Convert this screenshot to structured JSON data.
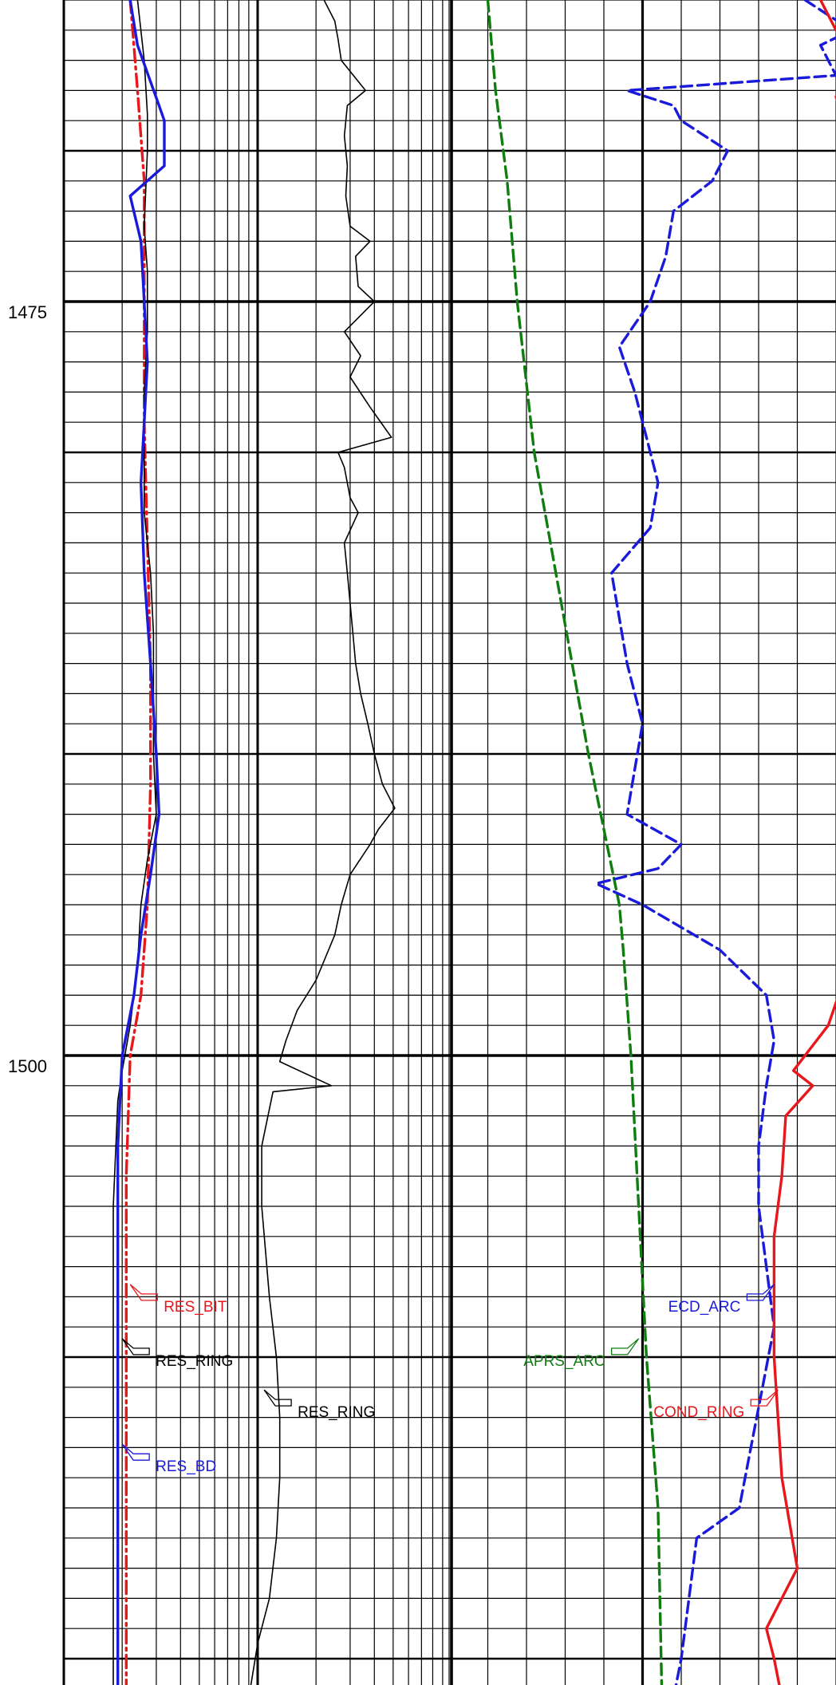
{
  "chart_data": {
    "type": "line",
    "title": "",
    "depth_axis": {
      "range": [
        1465,
        1521.3
      ],
      "tick_labels": [
        "1475",
        "1500"
      ],
      "major_step": 25,
      "gridline_step": 1
    },
    "grid": true,
    "tracks": [
      {
        "name": "track-1",
        "scale": "logarithmic",
        "series": [
          {
            "name": "RES_BIT",
            "color": "#e8171b",
            "dash": "dash-dot",
            "points": [
              [
                1465.0,
                0.22
              ],
              [
                1468.0,
                0.24
              ],
              [
                1471.0,
                0.26
              ],
              [
                1475.0,
                0.26
              ],
              [
                1479.0,
                0.26
              ],
              [
                1483.0,
                0.27
              ],
              [
                1487.0,
                0.28
              ],
              [
                1491.0,
                0.28
              ],
              [
                1495.0,
                0.27
              ],
              [
                1498.0,
                0.25
              ],
              [
                1500.0,
                0.22
              ],
              [
                1504.0,
                0.21
              ],
              [
                1508.0,
                0.21
              ],
              [
                1511.0,
                0.21
              ],
              [
                1514.0,
                0.21
              ],
              [
                1518.0,
                0.21
              ],
              [
                1521.3,
                0.21
              ]
            ]
          },
          {
            "name": "RES_RING",
            "color": "#000000",
            "dash": "solid",
            "points": [
              [
                1465.0,
                0.24
              ],
              [
                1467.0,
                0.26
              ],
              [
                1468.8,
                0.27
              ],
              [
                1470.0,
                0.27
              ],
              [
                1472.5,
                0.26
              ],
              [
                1474.0,
                0.27
              ],
              [
                1476.0,
                0.27
              ],
              [
                1478.0,
                0.26
              ],
              [
                1480.0,
                0.26
              ],
              [
                1482.0,
                0.26
              ],
              [
                1484.0,
                0.28
              ],
              [
                1486.0,
                0.29
              ],
              [
                1488.0,
                0.29
              ],
              [
                1490.0,
                0.29
              ],
              [
                1492.0,
                0.3
              ],
              [
                1493.5,
                0.27
              ],
              [
                1495.0,
                0.25
              ],
              [
                1497.0,
                0.24
              ],
              [
                1499.0,
                0.22
              ],
              [
                1500.5,
                0.2
              ],
              [
                1501.5,
                0.19
              ],
              [
                1505.0,
                0.18
              ],
              [
                1510.0,
                0.18
              ],
              [
                1515.0,
                0.18
              ],
              [
                1521.3,
                0.18
              ]
            ]
          },
          {
            "name": "RES_BD",
            "color": "#1a1adb",
            "dash": "solid",
            "points": [
              [
                1465.0,
                0.22
              ],
              [
                1466.5,
                0.24
              ],
              [
                1468.5,
                0.31
              ],
              [
                1469.0,
                0.33
              ],
              [
                1470.5,
                0.33
              ],
              [
                1471.5,
                0.22
              ],
              [
                1473.0,
                0.25
              ],
              [
                1475.0,
                0.26
              ],
              [
                1477.0,
                0.27
              ],
              [
                1479.0,
                0.26
              ],
              [
                1481.0,
                0.25
              ],
              [
                1484.0,
                0.26
              ],
              [
                1487.0,
                0.28
              ],
              [
                1490.0,
                0.3
              ],
              [
                1492.0,
                0.31
              ],
              [
                1494.0,
                0.28
              ],
              [
                1496.0,
                0.25
              ],
              [
                1498.0,
                0.23
              ],
              [
                1500.0,
                0.2
              ],
              [
                1503.0,
                0.19
              ],
              [
                1506.0,
                0.19
              ],
              [
                1510.0,
                0.19
              ],
              [
                1515.0,
                0.19
              ],
              [
                1521.3,
                0.19
              ]
            ]
          },
          {
            "name": "RES_RING",
            "color": "#000000",
            "dash": "solid",
            "points": [
              [
                1465.0,
                2.2
              ],
              [
                1465.7,
                2.5
              ],
              [
                1466.3,
                2.6
              ],
              [
                1467.0,
                2.7
              ],
              [
                1468.0,
                3.6
              ],
              [
                1468.5,
                2.9
              ],
              [
                1469.5,
                2.8
              ],
              [
                1470.5,
                2.9
              ],
              [
                1471.5,
                2.85
              ],
              [
                1472.5,
                3.0
              ],
              [
                1473.0,
                3.8
              ],
              [
                1473.5,
                3.2
              ],
              [
                1474.5,
                3.3
              ],
              [
                1475.0,
                4.0
              ],
              [
                1476.0,
                2.8
              ],
              [
                1476.8,
                3.4
              ],
              [
                1477.5,
                3.0
              ],
              [
                1478.5,
                3.8
              ],
              [
                1479.5,
                4.9
              ],
              [
                1480.0,
                2.6
              ],
              [
                1480.5,
                2.8
              ],
              [
                1481.5,
                3.0
              ],
              [
                1482.0,
                3.3
              ],
              [
                1483.0,
                2.8
              ],
              [
                1484.0,
                2.9
              ],
              [
                1485.0,
                3.0
              ],
              [
                1486.0,
                3.1
              ],
              [
                1487.0,
                3.2
              ],
              [
                1488.0,
                3.4
              ],
              [
                1489.0,
                3.7
              ],
              [
                1490.0,
                4.0
              ],
              [
                1491.0,
                4.4
              ],
              [
                1491.8,
                5.1
              ],
              [
                1492.5,
                4.2
              ],
              [
                1493.0,
                3.8
              ],
              [
                1494.0,
                3.0
              ],
              [
                1495.0,
                2.7
              ],
              [
                1496.0,
                2.5
              ],
              [
                1497.5,
                2.0
              ],
              [
                1498.5,
                1.6
              ],
              [
                1499.5,
                1.4
              ],
              [
                1500.2,
                1.3
              ],
              [
                1501.0,
                2.4
              ],
              [
                1501.2,
                1.2
              ],
              [
                1503.0,
                1.05
              ],
              [
                1505.0,
                1.05
              ],
              [
                1508.0,
                1.15
              ],
              [
                1510.0,
                1.25
              ],
              [
                1512.0,
                1.3
              ],
              [
                1514.0,
                1.3
              ],
              [
                1516.0,
                1.25
              ],
              [
                1518.0,
                1.15
              ],
              [
                1519.5,
                1.0
              ],
              [
                1521.3,
                0.9
              ]
            ]
          }
        ]
      },
      {
        "name": "track-2",
        "scale": "linear",
        "series": [
          {
            "name": "APRS_ARC",
            "color": "#0f7d0f",
            "dash": "dashed",
            "points": [
              [
                1465.0,
                10.5
              ],
              [
                1468.0,
                10.6
              ],
              [
                1471.0,
                10.75
              ],
              [
                1475.0,
                10.88
              ],
              [
                1480.0,
                11.1
              ],
              [
                1485.0,
                11.45
              ],
              [
                1490.0,
                11.8
              ],
              [
                1495.0,
                12.2
              ],
              [
                1496.5,
                12.25
              ],
              [
                1500.0,
                12.35
              ],
              [
                1505.0,
                12.45
              ],
              [
                1510.0,
                12.55
              ],
              [
                1515.0,
                12.7
              ],
              [
                1521.3,
                12.75
              ]
            ]
          },
          {
            "name": "ECD_ARC",
            "color": "#1a1adb",
            "dash": "dashed",
            "points": [
              [
                1465.0,
                14.6
              ],
              [
                1466.0,
                15.2
              ],
              [
                1466.5,
                14.8
              ],
              [
                1467.5,
                15.0
              ],
              [
                1468.0,
                12.3
              ],
              [
                1468.5,
                12.9
              ],
              [
                1469.0,
                13.0
              ],
              [
                1470.0,
                13.6
              ],
              [
                1471.0,
                13.4
              ],
              [
                1472.0,
                12.9
              ],
              [
                1473.5,
                12.8
              ],
              [
                1475.0,
                12.6
              ],
              [
                1476.5,
                12.2
              ],
              [
                1478.0,
                12.4
              ],
              [
                1479.0,
                12.5
              ],
              [
                1480.0,
                12.6
              ],
              [
                1481.0,
                12.7
              ],
              [
                1482.5,
                12.6
              ],
              [
                1484.0,
                12.1
              ],
              [
                1485.5,
                12.2
              ],
              [
                1487.0,
                12.3
              ],
              [
                1489.0,
                12.5
              ],
              [
                1490.5,
                12.4
              ],
              [
                1492.0,
                12.3
              ],
              [
                1493.0,
                13.0
              ],
              [
                1493.8,
                12.7
              ],
              [
                1494.3,
                11.9
              ],
              [
                1495.0,
                12.5
              ],
              [
                1496.5,
                13.5
              ],
              [
                1498.0,
                14.1
              ],
              [
                1499.5,
                14.2
              ],
              [
                1501.0,
                14.1
              ],
              [
                1503.0,
                14.0
              ],
              [
                1505.0,
                14.0
              ],
              [
                1507.0,
                14.1
              ],
              [
                1509.0,
                14.2
              ],
              [
                1511.0,
                14.05
              ],
              [
                1513.0,
                13.9
              ],
              [
                1515.0,
                13.75
              ],
              [
                1516.0,
                13.2
              ],
              [
                1518.0,
                13.1
              ],
              [
                1520.0,
                13.0
              ],
              [
                1521.3,
                12.9
              ]
            ]
          },
          {
            "name": "COND_RING",
            "color": "#e8171b",
            "dash": "solid",
            "points": [
              [
                1465.0,
                14.8
              ],
              [
                1466.0,
                15.0
              ],
              [
                1467.5,
                15.4
              ],
              [
                1468.2,
                15.0
              ],
              [
                1470.0,
                15.2
              ],
              [
                1472.0,
                15.25
              ],
              [
                1474.0,
                15.3
              ],
              [
                1476.0,
                15.3
              ],
              [
                1478.0,
                15.25
              ],
              [
                1479.5,
                15.25
              ],
              [
                1480.5,
                15.1
              ],
              [
                1482.0,
                15.2
              ],
              [
                1484.0,
                15.3
              ],
              [
                1486.0,
                15.35
              ],
              [
                1488.0,
                15.4
              ],
              [
                1490.0,
                15.4
              ],
              [
                1491.0,
                15.5
              ],
              [
                1492.0,
                15.45
              ],
              [
                1494.0,
                15.4
              ],
              [
                1496.0,
                15.3
              ],
              [
                1497.5,
                15.1
              ],
              [
                1499.0,
                14.9
              ],
              [
                1500.5,
                14.45
              ],
              [
                1501.0,
                14.7
              ],
              [
                1502.0,
                14.35
              ],
              [
                1504.0,
                14.3
              ],
              [
                1506.0,
                14.2
              ],
              [
                1508.0,
                14.2
              ],
              [
                1510.0,
                14.2
              ],
              [
                1512.0,
                14.25
              ],
              [
                1514.0,
                14.3
              ],
              [
                1515.5,
                14.4
              ],
              [
                1517.0,
                14.5
              ],
              [
                1519.0,
                14.1
              ],
              [
                1520.0,
                14.2
              ],
              [
                1521.3,
                14.3
              ]
            ]
          }
        ]
      }
    ],
    "labels": [
      {
        "text": "RES_BIT",
        "track": "track-1",
        "color": "#e8171b",
        "depth": 1507.8,
        "value": 0.22
      },
      {
        "text": "RES_RING",
        "track": "track-1",
        "color": "#000000",
        "depth": 1509.6,
        "value": 0.2
      },
      {
        "text": "RES_RING",
        "track": "track-1",
        "color": "#000000",
        "depth": 1511.3,
        "value": 1.08
      },
      {
        "text": "RES_BD",
        "track": "track-1",
        "color": "#1a1adb",
        "depth": 1513.1,
        "value": 0.2
      },
      {
        "text": "ECD_ARC",
        "track": "track-2",
        "color": "#1a1adb",
        "depth": 1507.8,
        "value": 14.2
      },
      {
        "text": "APRS_ARC",
        "track": "track-2",
        "color": "#0f7d0f",
        "depth": 1509.6,
        "value": 12.45
      },
      {
        "text": "COND_RING",
        "track": "track-2",
        "color": "#e8171b",
        "depth": 1511.3,
        "value": 14.25
      }
    ]
  }
}
